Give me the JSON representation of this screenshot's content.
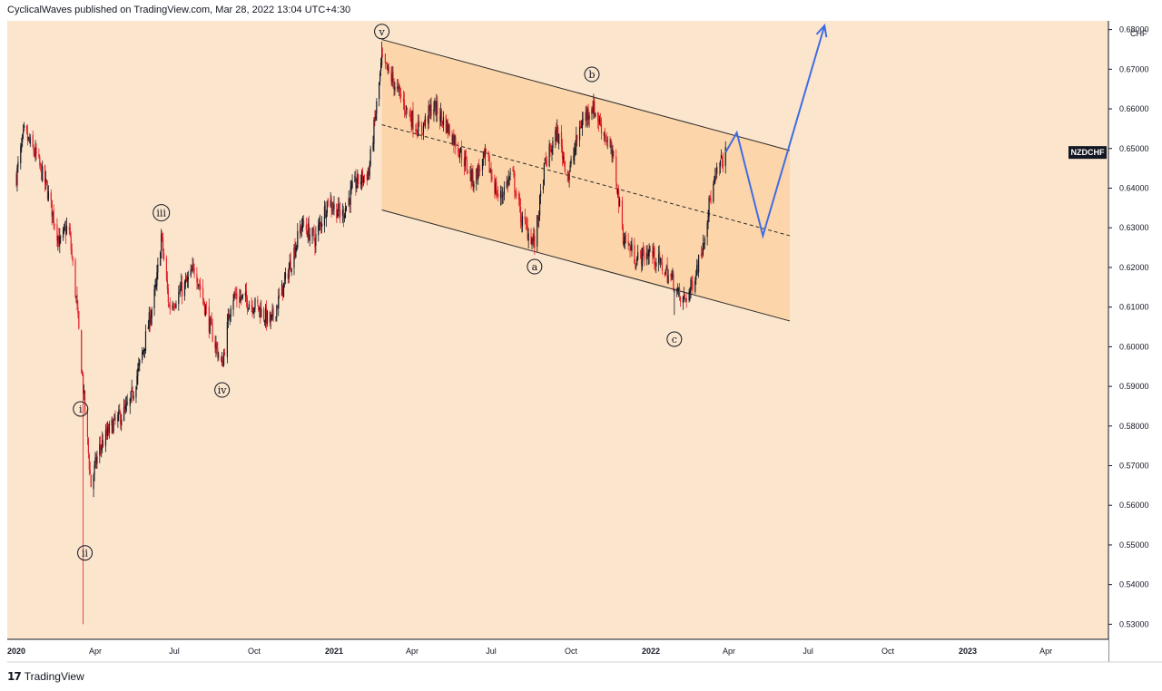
{
  "header": {
    "published_text": "CyclicalWaves published on TradingView.com, Mar 28, 2022 13:04 UTC+4:30"
  },
  "footer": {
    "logo_mark": "17",
    "logo_text": "TradingView"
  },
  "colors": {
    "background": "#fbe5cd",
    "channel_fill": "#fcd4a8",
    "bull_candle": "#131722",
    "bear_candle": "#e0202a",
    "projection": "#3f6de2",
    "symbol_tag_bg": "#131722"
  },
  "chart_data": {
    "type": "candlestick",
    "symbol": "NZDCHF",
    "currency_label": "CHF",
    "x_labels": [
      "2020",
      "Apr",
      "Jul",
      "Oct",
      "2021",
      "Apr",
      "Jul",
      "Oct",
      "2022",
      "Apr",
      "Jul",
      "Oct",
      "2023",
      "Apr"
    ],
    "year_labels": [
      "2020",
      "2021",
      "2022",
      "2023"
    ],
    "y_ticks": [
      "0.53000",
      "0.54000",
      "0.55000",
      "0.56000",
      "0.57000",
      "0.58000",
      "0.59000",
      "0.60000",
      "0.61000",
      "0.62000",
      "0.63000",
      "0.64000",
      "0.65000",
      "0.66000",
      "0.67000",
      "0.68000"
    ],
    "ylim": [
      0.5262,
      0.6822
    ],
    "series_path": [
      [
        "2020-01-01",
        0.643
      ],
      [
        "2020-01-10",
        0.654
      ],
      [
        "2020-01-24",
        0.648
      ],
      [
        "2020-02-05",
        0.64
      ],
      [
        "2020-02-20",
        0.626
      ],
      [
        "2020-03-01",
        0.631
      ],
      [
        "2020-03-10",
        0.612
      ],
      [
        "2020-03-20",
        0.584
      ],
      [
        "2020-03-27",
        0.565
      ],
      [
        "2020-04-05",
        0.574
      ],
      [
        "2020-04-20",
        0.58
      ],
      [
        "2020-05-10",
        0.585
      ],
      [
        "2020-05-25",
        0.598
      ],
      [
        "2020-06-10",
        0.615
      ],
      [
        "2020-06-16",
        0.628
      ],
      [
        "2020-06-25",
        0.61
      ],
      [
        "2020-07-15",
        0.616
      ],
      [
        "2020-07-25",
        0.62
      ],
      [
        "2020-08-10",
        0.606
      ],
      [
        "2020-08-25",
        0.595
      ],
      [
        "2020-09-05",
        0.613
      ],
      [
        "2020-09-20",
        0.612
      ],
      [
        "2020-10-05",
        0.61
      ],
      [
        "2020-10-20",
        0.606
      ],
      [
        "2020-11-05",
        0.616
      ],
      [
        "2020-11-25",
        0.631
      ],
      [
        "2020-12-10",
        0.627
      ],
      [
        "2020-12-25",
        0.637
      ],
      [
        "2021-01-10",
        0.633
      ],
      [
        "2021-01-25",
        0.641
      ],
      [
        "2021-02-10",
        0.644
      ],
      [
        "2021-02-25",
        0.672
      ],
      [
        "2021-03-10",
        0.667
      ],
      [
        "2021-03-25",
        0.66
      ],
      [
        "2021-04-10",
        0.654
      ],
      [
        "2021-04-25",
        0.661
      ],
      [
        "2021-05-10",
        0.656
      ],
      [
        "2021-05-25",
        0.65
      ],
      [
        "2021-06-10",
        0.642
      ],
      [
        "2021-06-25",
        0.648
      ],
      [
        "2021-07-10",
        0.637
      ],
      [
        "2021-07-25",
        0.644
      ],
      [
        "2021-08-05",
        0.632
      ],
      [
        "2021-08-20",
        0.626
      ],
      [
        "2021-09-01",
        0.646
      ],
      [
        "2021-09-15",
        0.654
      ],
      [
        "2021-09-28",
        0.643
      ],
      [
        "2021-10-12",
        0.656
      ],
      [
        "2021-10-25",
        0.661
      ],
      [
        "2021-11-10",
        0.653
      ],
      [
        "2021-11-20",
        0.646
      ],
      [
        "2021-11-30",
        0.628
      ],
      [
        "2021-12-15",
        0.622
      ],
      [
        "2021-12-31",
        0.624
      ],
      [
        "2022-01-15",
        0.62
      ],
      [
        "2022-01-28",
        0.616
      ],
      [
        "2022-02-05",
        0.611
      ],
      [
        "2022-02-15",
        0.614
      ],
      [
        "2022-02-28",
        0.624
      ],
      [
        "2022-03-10",
        0.637
      ],
      [
        "2022-03-20",
        0.645
      ],
      [
        "2022-03-28",
        0.649
      ]
    ],
    "extremes": [
      {
        "date": "2020-03-18",
        "low": 0.53
      },
      {
        "date": "2021-02-25",
        "high": 0.677
      },
      {
        "date": "2022-01-28",
        "low": 0.608
      }
    ],
    "channel": {
      "upper": [
        [
          "2021-02-25",
          0.6775
        ],
        [
          "2022-06-10",
          0.6495
        ]
      ],
      "lower": [
        [
          "2021-02-25",
          0.6345
        ],
        [
          "2022-06-10",
          0.6065
        ]
      ],
      "mid": [
        [
          "2021-02-25",
          0.656
        ],
        [
          "2022-06-10",
          0.628
        ]
      ]
    },
    "projection": [
      [
        "2022-03-28",
        0.649
      ],
      [
        "2022-04-10",
        0.654
      ],
      [
        "2022-05-10",
        0.628
      ],
      [
        "2022-07-20",
        0.681
      ]
    ],
    "wave_labels": [
      {
        "text": "v",
        "date": "2021-02-25",
        "value": 0.6795
      },
      {
        "text": "b",
        "date": "2021-10-25",
        "value": 0.6687
      },
      {
        "text": "iii",
        "date": "2020-06-16",
        "value": 0.6338
      },
      {
        "text": "a",
        "date": "2021-08-20",
        "value": 0.6202
      },
      {
        "text": "c",
        "date": "2022-01-28",
        "value": 0.6019
      },
      {
        "text": "iv",
        "date": "2020-08-25",
        "value": 0.5891
      },
      {
        "text": "i",
        "date": "2020-03-15",
        "value": 0.5843
      },
      {
        "text": "ii",
        "date": "2020-03-20",
        "value": 0.548
      }
    ]
  }
}
